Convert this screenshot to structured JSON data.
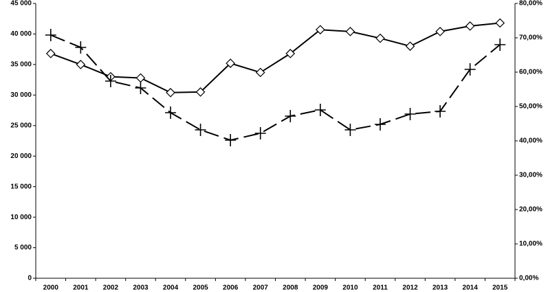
{
  "chart_data": {
    "type": "line",
    "categories": [
      "2000",
      "2001",
      "2002",
      "2003",
      "2004",
      "2005",
      "2006",
      "2007",
      "2008",
      "2009",
      "2010",
      "2011",
      "2012",
      "2013",
      "2014",
      "2015"
    ],
    "series": [
      {
        "color": "#000000",
        "marker": "diamond",
        "dashed": false,
        "values": [
          36800,
          35000,
          33000,
          32800,
          30400,
          30500,
          35200,
          33700,
          36800,
          40700,
          40400,
          39300,
          38000,
          40400,
          41300,
          41800
        ]
      },
      {
        "color": "#000000",
        "marker": "cross",
        "dashed": true,
        "axis": "y2",
        "values": [
          70.8,
          67.2,
          57.4,
          55.4,
          48.2,
          43.2,
          40.2,
          42.2,
          47.2,
          49,
          43.2,
          44.8,
          47.8,
          48.6,
          60.8,
          68
        ]
      }
    ],
    "ylim": [
      0,
      45000
    ],
    "yticks": [
      0,
      {
        "value": 5000,
        "label": "5 000"
      },
      {
        "value": 10000,
        "label": "10 000"
      },
      {
        "value": 15000,
        "label": "15 000"
      },
      {
        "value": 20000,
        "label": "20 000"
      },
      {
        "value": 25000,
        "label": "25 000"
      },
      {
        "value": 30000,
        "label": "30 000"
      },
      {
        "value": 35000,
        "label": "35 000"
      },
      {
        "value": 40000,
        "label": "40 000"
      },
      {
        "value": 45000,
        "label": "45 000"
      }
    ],
    "y2lim": [
      0,
      80
    ],
    "y2ticks": [
      {
        "value": 0,
        "label": "0,00%"
      },
      {
        "value": 10,
        "label": "10,00%"
      },
      {
        "value": 20,
        "label": "20,00%"
      },
      {
        "value": 30,
        "label": "30,00%"
      },
      {
        "value": 40,
        "label": "40,00%"
      },
      {
        "value": 50,
        "label": "50,00%"
      },
      {
        "value": 60,
        "label": "60,00%"
      },
      {
        "value": 70,
        "label": "70,00%"
      },
      {
        "value": 80,
        "label": "80,00%"
      }
    ],
    "grid": false
  }
}
